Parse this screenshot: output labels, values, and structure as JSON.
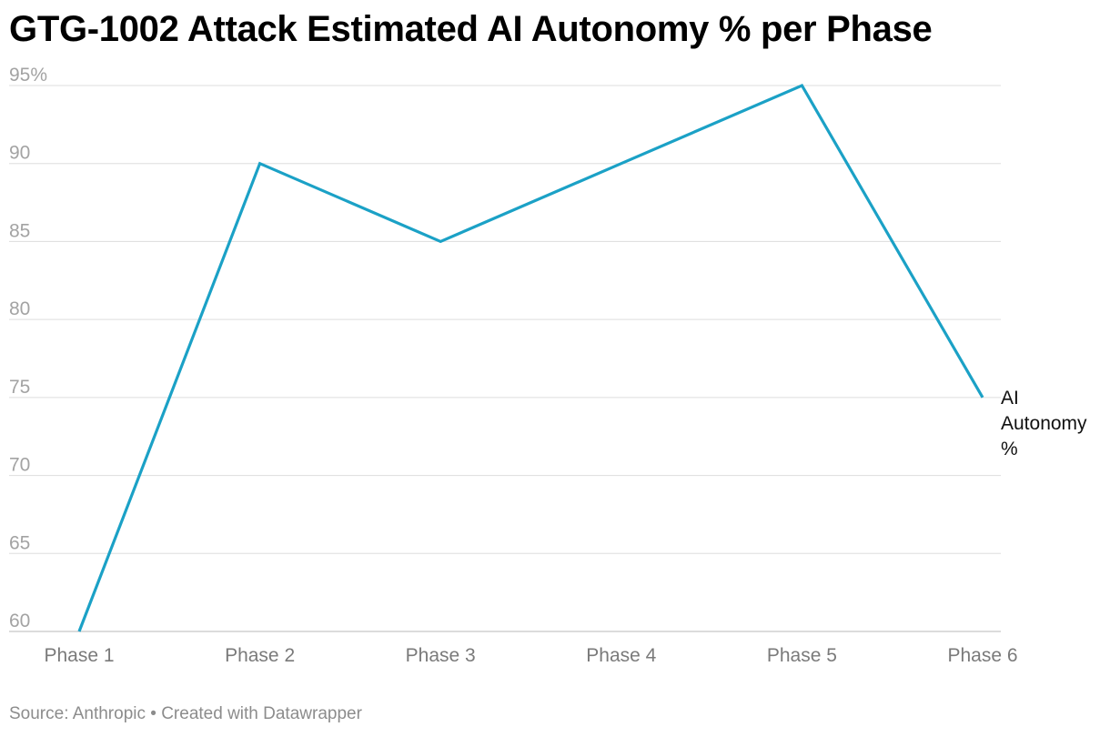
{
  "title": "GTG-1002 Attack Estimated AI Autonomy % per Phase",
  "footer": {
    "source_label": "Source: Anthropic",
    "separator": "•",
    "credit": "Created with Datawrapper"
  },
  "chart_data": {
    "type": "line",
    "title": "GTG-1002 Attack Estimated AI Autonomy % per Phase",
    "categories": [
      "Phase 1",
      "Phase 2",
      "Phase 3",
      "Phase 4",
      "Phase 5",
      "Phase 6"
    ],
    "series": [
      {
        "name": "AI Autonomy %",
        "label_lines": [
          "AI",
          "Autonomy",
          "%"
        ],
        "values": [
          60,
          90,
          85,
          90,
          95,
          75
        ],
        "color": "#1ba1c6"
      }
    ],
    "ylim": [
      60,
      95
    ],
    "yticks": [
      60,
      65,
      70,
      75,
      80,
      85,
      90,
      95
    ],
    "ytick_labels": [
      "60",
      "65",
      "70",
      "75",
      "80",
      "85",
      "90",
      "95%"
    ],
    "grid": true,
    "gridline_color": "#dddddd",
    "xlabel": "",
    "ylabel": ""
  }
}
